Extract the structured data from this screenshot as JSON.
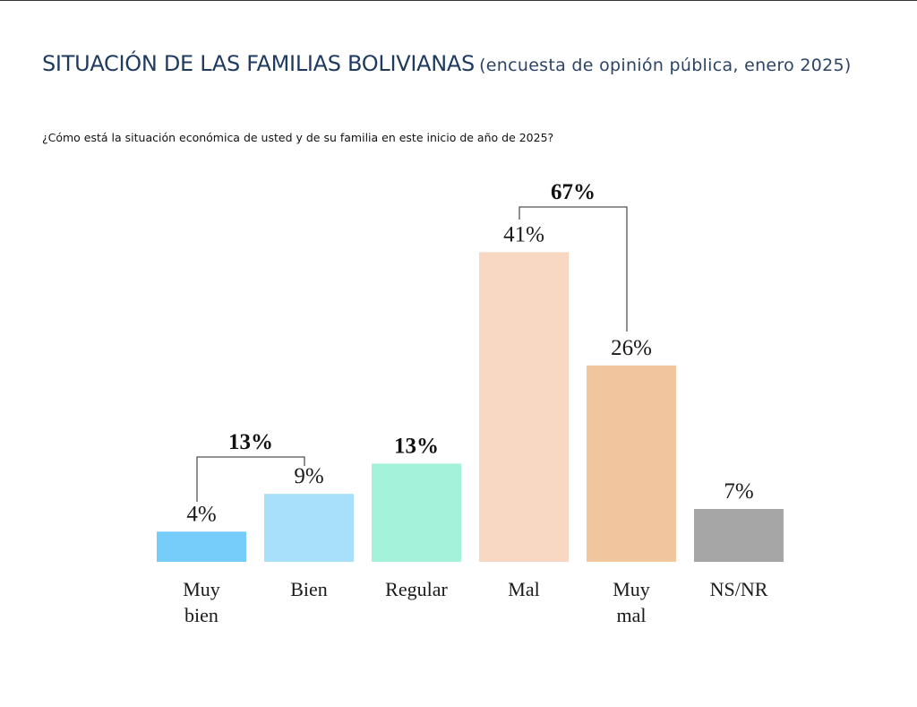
{
  "header": {
    "title": "SITUACIÓN DE LAS FAMILIAS BOLIVIANAS",
    "subtitle": "(encuesta de opinión pública, enero 2025)",
    "question": "¿Cómo está la situación económica de usted y de su familia en este inicio de año de 2025?"
  },
  "chart_data": {
    "type": "bar",
    "title": "SITUACIÓN DE LAS FAMILIAS BOLIVIANAS (encuesta de opinión pública, enero 2025)",
    "subtitle": "¿Cómo está la situación económica de usted y de su familia en este inicio de año de 2025?",
    "xlabel": "",
    "ylabel": "",
    "unit": "%",
    "ylim": [
      0,
      45
    ],
    "grid": false,
    "categories": [
      {
        "label_lines": [
          "Muy",
          "bien"
        ],
        "value": 4,
        "label": "4%",
        "color": "#76cdfa"
      },
      {
        "label_lines": [
          "Bien"
        ],
        "value": 9,
        "label": "9%",
        "color": "#a8e0fb"
      },
      {
        "label_lines": [
          "Regular"
        ],
        "value": 13,
        "label": "13%",
        "color": "#a3f2d9",
        "bold_label": true
      },
      {
        "label_lines": [
          "Mal"
        ],
        "value": 41,
        "label": "41%",
        "color": "#f8d8c3"
      },
      {
        "label_lines": [
          "Muy",
          "mal"
        ],
        "value": 26,
        "label": "26%",
        "color": "#f1c69e"
      },
      {
        "label_lines": [
          "NS/NR"
        ],
        "value": 7,
        "label": "7%",
        "color": "#a6a6a6"
      }
    ],
    "groups": [
      {
        "from": 0,
        "to": 1,
        "total": 13,
        "label": "13%"
      },
      {
        "from": 3,
        "to": 4,
        "total": 67,
        "label": "67%"
      }
    ]
  }
}
